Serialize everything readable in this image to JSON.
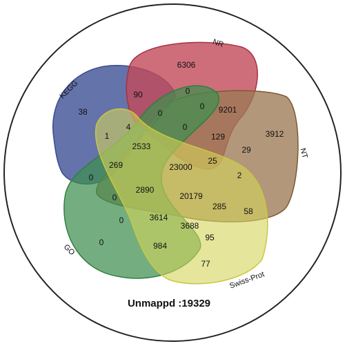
{
  "sets": [
    "KEGG",
    "NR",
    "NT",
    "GO",
    "Swiss-Prot"
  ],
  "regions": [
    "6306",
    "90",
    "0",
    "0",
    "9201",
    "38",
    "0",
    "4",
    "0",
    "129",
    "3912",
    "1",
    "2533",
    "29",
    "269",
    "23000",
    "25",
    "2",
    "0",
    "2890",
    "20179",
    "0",
    "285",
    "58",
    "0",
    "3614",
    "3688",
    "95",
    "0",
    "984",
    "77"
  ],
  "footer": "Unmappd :19329"
}
